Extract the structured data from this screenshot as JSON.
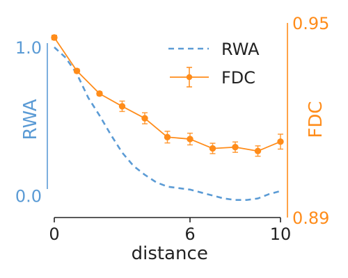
{
  "chart_data": {
    "type": "line",
    "xlabel": "distance",
    "ylabel_left": "RWA",
    "ylabel_right": "FDC",
    "x_ticks": [
      "0",
      "6",
      "10"
    ],
    "x_tick_values": [
      0,
      6,
      10
    ],
    "xlim": [
      0,
      10
    ],
    "y_left_ticks": [
      "0.0",
      "1.0"
    ],
    "y_left_tick_values": [
      0.0,
      1.0
    ],
    "ylim_left": [
      -0.125,
      1.15
    ],
    "y_right_ticks": [
      "0.89",
      "0.95"
    ],
    "y_right_tick_values": [
      0.89,
      0.95
    ],
    "ylim_right": [
      0.89,
      0.95
    ],
    "grid": false,
    "legend_position": "top-right",
    "colors": {
      "rwa": "#5b9bd5",
      "fdc": "#ff8c1a",
      "text": "#222222"
    },
    "series": [
      {
        "name": "RWA",
        "axis": "left",
        "style": "dashed",
        "x": [
          0,
          0.5,
          1,
          1.5,
          2,
          2.5,
          3,
          3.5,
          4,
          4.5,
          5,
          5.5,
          6,
          6.5,
          7,
          7.5,
          8,
          8.5,
          9,
          9.5,
          10
        ],
        "y": [
          1.0,
          0.93,
          0.82,
          0.66,
          0.54,
          0.41,
          0.29,
          0.2,
          0.14,
          0.09,
          0.06,
          0.05,
          0.04,
          0.02,
          0.0,
          -0.02,
          -0.03,
          -0.03,
          -0.02,
          0.01,
          0.03
        ]
      },
      {
        "name": "FDC",
        "axis": "right",
        "style": "solid",
        "x": [
          0,
          1,
          2,
          3,
          4,
          5,
          6,
          7,
          8,
          9,
          10
        ],
        "y": [
          0.9455,
          0.9352,
          0.9282,
          0.9243,
          0.9206,
          0.9148,
          0.9142,
          0.9113,
          0.9117,
          0.9105,
          0.9134
        ],
        "err": [
          0.0007,
          0.0006,
          0.0006,
          0.0016,
          0.0017,
          0.0018,
          0.0018,
          0.0016,
          0.0016,
          0.0016,
          0.0023
        ]
      }
    ]
  }
}
